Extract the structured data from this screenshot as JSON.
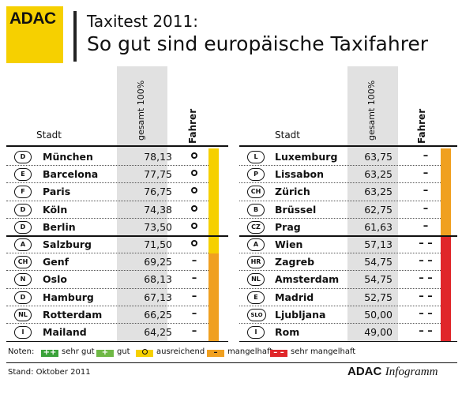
{
  "header": {
    "logo": "ADAC",
    "title_line1": "Taxitest 2011:",
    "title_line2": "So gut sind europäische Taxifahrer"
  },
  "columns": {
    "stadt": "Stadt",
    "gesamt": "gesamt 100%",
    "fahrer": "Fahrer"
  },
  "left_table": [
    {
      "code": "D",
      "city": "München",
      "score": "78,13",
      "rating": "o"
    },
    {
      "code": "E",
      "city": "Barcelona",
      "score": "77,75",
      "rating": "o"
    },
    {
      "code": "F",
      "city": "Paris",
      "score": "76,75",
      "rating": "o"
    },
    {
      "code": "D",
      "city": "Köln",
      "score": "74,38",
      "rating": "o"
    },
    {
      "code": "D",
      "city": "Berlin",
      "score": "73,50",
      "rating": "o"
    },
    {
      "code": "A",
      "city": "Salzburg",
      "score": "71,50",
      "rating": "o"
    },
    {
      "code": "CH",
      "city": "Genf",
      "score": "69,25",
      "rating": "–"
    },
    {
      "code": "N",
      "city": "Oslo",
      "score": "68,13",
      "rating": "–"
    },
    {
      "code": "D",
      "city": "Hamburg",
      "score": "67,13",
      "rating": "–"
    },
    {
      "code": "NL",
      "city": "Rotterdam",
      "score": "66,25",
      "rating": "–"
    },
    {
      "code": "I",
      "city": "Mailand",
      "score": "64,25",
      "rating": "–"
    }
  ],
  "right_table": [
    {
      "code": "L",
      "city": "Luxemburg",
      "score": "63,75",
      "rating": "–"
    },
    {
      "code": "P",
      "city": "Lissabon",
      "score": "63,25",
      "rating": "–"
    },
    {
      "code": "CH",
      "city": "Zürich",
      "score": "63,25",
      "rating": "–"
    },
    {
      "code": "B",
      "city": "Brüssel",
      "score": "62,75",
      "rating": "–"
    },
    {
      "code": "CZ",
      "city": "Prag",
      "score": "61,63",
      "rating": "–"
    },
    {
      "code": "A",
      "city": "Wien",
      "score": "57,13",
      "rating": "– –"
    },
    {
      "code": "HR",
      "city": "Zagreb",
      "score": "54,75",
      "rating": "– –"
    },
    {
      "code": "NL",
      "city": "Amsterdam",
      "score": "54,75",
      "rating": "– –"
    },
    {
      "code": "E",
      "city": "Madrid",
      "score": "52,75",
      "rating": "– –"
    },
    {
      "code": "SLO",
      "city": "Ljubljana",
      "score": "50,00",
      "rating": "– –"
    },
    {
      "code": "I",
      "city": "Rom",
      "score": "49,00",
      "rating": "– –"
    }
  ],
  "legend": {
    "label": "Noten:",
    "items": [
      {
        "symbol": "++",
        "text": "sehr gut",
        "color": "#3aa23a"
      },
      {
        "symbol": "+",
        "text": "gut",
        "color": "#6fb845"
      },
      {
        "symbol": "o",
        "text": "ausreichend",
        "color": "#f6d000"
      },
      {
        "symbol": "–",
        "text": "mangelhaft",
        "color": "#f0a020"
      },
      {
        "symbol": "– –",
        "text": "sehr mangelhaft",
        "color": "#e0262a"
      }
    ]
  },
  "footer": {
    "stand": "Stand: Oktober 2011",
    "brand_bold": "ADAC",
    "brand_italic": "Infogramm"
  },
  "colors": {
    "adac_yellow": "#f6d000",
    "ausreichend": "#f6d000",
    "mangelhaft": "#f0a020",
    "sehr_mangelhaft": "#e0262a",
    "column_gray": "#e1e1e1"
  }
}
